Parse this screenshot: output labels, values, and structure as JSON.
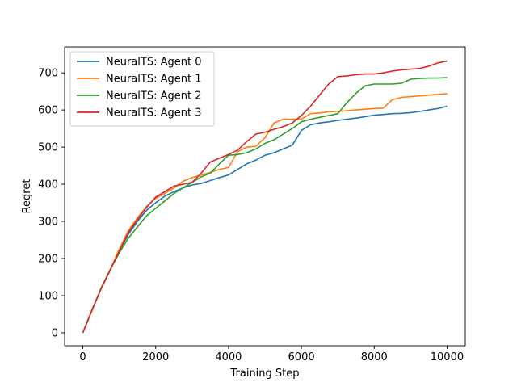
{
  "chart_data": {
    "type": "line",
    "title": "",
    "xlabel": "Training Step",
    "ylabel": "Regret",
    "xlim": [
      -500,
      10500
    ],
    "ylim": [
      -35,
      770
    ],
    "xticks": [
      0,
      2000,
      4000,
      6000,
      8000,
      10000
    ],
    "yticks": [
      0,
      100,
      200,
      300,
      400,
      500,
      600,
      700
    ],
    "grid": false,
    "legend_position": "top-left",
    "series": [
      {
        "name": "NeuralTS: Agent 0",
        "color": "#1f77b4",
        "x": [
          0,
          250,
          500,
          750,
          1000,
          1250,
          1500,
          1750,
          2000,
          2250,
          2500,
          2750,
          3000,
          3250,
          3500,
          3750,
          4000,
          4250,
          4500,
          4750,
          5000,
          5250,
          5500,
          5750,
          6000,
          6250,
          6500,
          6750,
          7000,
          7250,
          7500,
          7750,
          8000,
          8250,
          8500,
          8750,
          9000,
          9250,
          9500,
          9750,
          10000
        ],
        "values": [
          0,
          60,
          120,
          170,
          220,
          265,
          300,
          330,
          350,
          368,
          380,
          390,
          398,
          402,
          410,
          418,
          425,
          440,
          455,
          465,
          478,
          485,
          495,
          505,
          545,
          560,
          565,
          568,
          572,
          575,
          578,
          582,
          586,
          588,
          590,
          591,
          593,
          596,
          600,
          604,
          610
        ]
      },
      {
        "name": "NeuralTS: Agent 1",
        "color": "#ff7f0e",
        "x": [
          0,
          250,
          500,
          750,
          1000,
          1250,
          1500,
          1750,
          2000,
          2250,
          2500,
          2750,
          3000,
          3250,
          3500,
          3750,
          4000,
          4250,
          4500,
          4750,
          5000,
          5250,
          5500,
          5750,
          6000,
          6250,
          6500,
          6750,
          7000,
          7250,
          7500,
          7750,
          8000,
          8250,
          8500,
          8750,
          9000,
          9250,
          9500,
          9750,
          10000
        ],
        "values": [
          0,
          62,
          118,
          170,
          225,
          275,
          310,
          340,
          362,
          375,
          390,
          408,
          418,
          425,
          432,
          440,
          445,
          488,
          500,
          502,
          525,
          565,
          575,
          575,
          575,
          590,
          592,
          595,
          596,
          598,
          600,
          602,
          604,
          605,
          628,
          634,
          636,
          638,
          640,
          642,
          644
        ]
      },
      {
        "name": "NeuralTS: Agent 2",
        "color": "#2ca02c",
        "x": [
          0,
          250,
          500,
          750,
          1000,
          1250,
          1500,
          1750,
          2000,
          2250,
          2500,
          2750,
          3000,
          3250,
          3500,
          3750,
          4000,
          4250,
          4500,
          4750,
          5000,
          5250,
          5500,
          5750,
          6000,
          6250,
          6500,
          6750,
          7000,
          7250,
          7500,
          7750,
          8000,
          8250,
          8500,
          8750,
          9000,
          9250,
          9500,
          9750,
          10000
        ],
        "values": [
          0,
          60,
          120,
          170,
          215,
          255,
          285,
          315,
          335,
          355,
          375,
          390,
          405,
          420,
          430,
          455,
          478,
          480,
          485,
          495,
          510,
          520,
          535,
          550,
          568,
          575,
          580,
          585,
          590,
          620,
          645,
          665,
          670,
          670,
          670,
          672,
          683,
          685,
          686,
          686,
          687
        ]
      },
      {
        "name": "NeuralTS: Agent 3",
        "color": "#d62728",
        "x": [
          0,
          250,
          500,
          750,
          1000,
          1250,
          1500,
          1750,
          2000,
          2250,
          2500,
          2750,
          3000,
          3250,
          3500,
          3750,
          4000,
          4250,
          4500,
          4750,
          5000,
          5250,
          5500,
          5750,
          6000,
          6250,
          6500,
          6750,
          7000,
          7250,
          7500,
          7750,
          8000,
          8250,
          8500,
          8750,
          9000,
          9250,
          9500,
          9750,
          10000
        ],
        "values": [
          0,
          60,
          118,
          168,
          220,
          270,
          305,
          338,
          365,
          380,
          395,
          400,
          405,
          430,
          460,
          470,
          480,
          492,
          515,
          535,
          540,
          548,
          555,
          565,
          585,
          610,
          640,
          670,
          690,
          692,
          695,
          697,
          697,
          700,
          705,
          708,
          710,
          712,
          718,
          727,
          732
        ]
      }
    ]
  }
}
